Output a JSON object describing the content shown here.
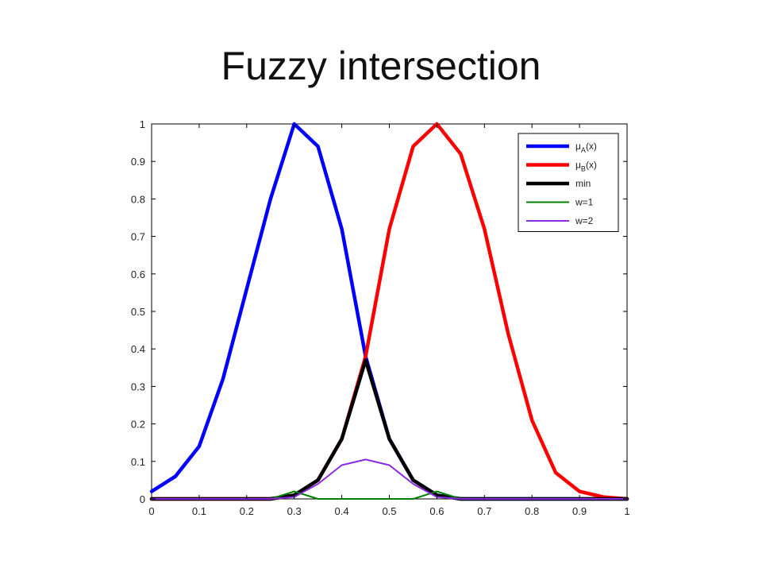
{
  "slide": {
    "title": "Fuzzy intersection"
  },
  "chart_data": {
    "type": "line",
    "title": "",
    "xlabel": "",
    "ylabel": "",
    "xlim": [
      0,
      1
    ],
    "ylim": [
      0,
      1
    ],
    "x_ticks": [
      "0",
      "0.1",
      "0.2",
      "0.3",
      "0.4",
      "0.5",
      "0.6",
      "0.7",
      "0.8",
      "0.9",
      "1"
    ],
    "y_ticks": [
      "0",
      "0.1",
      "0.2",
      "0.3",
      "0.4",
      "0.5",
      "0.6",
      "0.7",
      "0.8",
      "0.9",
      "1"
    ],
    "grid": false,
    "legend_position": "top-right",
    "x": [
      0,
      0.05,
      0.1,
      0.15,
      0.2,
      0.25,
      0.3,
      0.35,
      0.4,
      0.45,
      0.5,
      0.55,
      0.6,
      0.65,
      0.7,
      0.75,
      0.8,
      0.85,
      0.9,
      0.95,
      1.0
    ],
    "series": [
      {
        "name": "μ_A(x)",
        "legend_main": "μ",
        "legend_sub": "A",
        "legend_tail": "(x)",
        "color": "#0000ff",
        "style": "thick",
        "values": [
          0.02,
          0.06,
          0.14,
          0.32,
          0.56,
          0.8,
          1.0,
          0.94,
          0.72,
          0.38,
          0.16,
          0.05,
          0.01,
          0.0,
          0.0,
          0.0,
          0.0,
          0.0,
          0.0,
          0.0,
          0.0
        ]
      },
      {
        "name": "μ_B(x)",
        "legend_main": "μ",
        "legend_sub": "B",
        "legend_tail": "(x)",
        "color": "#ff0000",
        "style": "thick",
        "values": [
          0.0,
          0.0,
          0.0,
          0.0,
          0.0,
          0.0,
          0.01,
          0.05,
          0.16,
          0.38,
          0.72,
          0.94,
          1.0,
          0.92,
          0.72,
          0.44,
          0.21,
          0.07,
          0.02,
          0.005,
          0.0
        ]
      },
      {
        "name": "min",
        "color": "#000000",
        "style": "thick",
        "values": [
          0.0,
          0.0,
          0.0,
          0.0,
          0.0,
          0.0,
          0.01,
          0.05,
          0.16,
          0.37,
          0.16,
          0.05,
          0.01,
          0.0,
          0.0,
          0.0,
          0.0,
          0.0,
          0.0,
          0.0,
          0.0
        ]
      },
      {
        "name": "w=1",
        "color": "#008000",
        "style": "thin",
        "values": [
          0.0,
          0.0,
          0.0,
          0.0,
          0.0,
          0.0,
          0.02,
          0.0,
          0.0,
          0.0,
          0.0,
          0.0,
          0.02,
          0.0,
          0.0,
          0.0,
          0.0,
          0.0,
          0.0,
          0.0,
          0.0
        ]
      },
      {
        "name": "w=2",
        "color": "#8a2be2",
        "style": "thin",
        "values": [
          0.0,
          0.0,
          0.0,
          0.0,
          0.0,
          0.0,
          0.005,
          0.04,
          0.09,
          0.105,
          0.09,
          0.04,
          0.005,
          0.0,
          0.0,
          0.0,
          0.0,
          0.0,
          0.0,
          0.0,
          0.0
        ]
      }
    ]
  }
}
